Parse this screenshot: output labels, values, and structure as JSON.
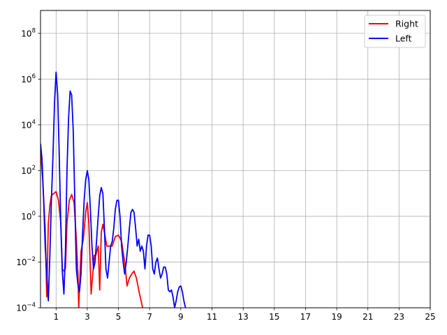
{
  "chart_data": {
    "type": "line",
    "title": "",
    "xlabel": "",
    "ylabel": "",
    "xlim": [
      0,
      25
    ],
    "ylim": [
      0.0001,
      1000000000
    ],
    "yscale": "log",
    "grid": true,
    "legend_position": "top-right",
    "x_ticks": [
      1,
      3,
      5,
      7,
      9,
      11,
      13,
      15,
      17,
      19,
      21,
      23,
      25
    ],
    "y_ticks": [
      {
        "value": 0.0001,
        "base": "10",
        "exp": "−4"
      },
      {
        "value": 0.01,
        "base": "10",
        "exp": "−2"
      },
      {
        "value": 1,
        "base": "10",
        "exp": "0"
      },
      {
        "value": 100,
        "base": "10",
        "exp": "2"
      },
      {
        "value": 10000,
        "base": "10",
        "exp": "4"
      },
      {
        "value": 1000000,
        "base": "10",
        "exp": "6"
      },
      {
        "value": 100000000,
        "base": "10",
        "exp": "8"
      }
    ],
    "series": [
      {
        "name": "Right",
        "color": "#ff0000",
        "x": [
          0.0,
          0.15,
          0.3,
          0.4,
          0.5,
          0.6,
          0.7,
          0.85,
          1.0,
          1.15,
          1.3,
          1.4,
          1.5,
          1.6,
          1.7,
          1.85,
          2.0,
          2.15,
          2.3,
          2.4,
          2.45,
          2.6,
          2.75,
          2.9,
          3.0,
          3.1,
          3.25,
          3.35,
          3.45,
          3.55,
          3.7,
          3.8,
          3.9,
          4.0,
          4.1,
          4.25,
          4.4,
          4.6,
          4.8,
          5.0,
          5.2,
          5.4,
          5.55,
          5.7,
          5.85,
          6.0,
          6.15,
          6.3,
          6.45,
          6.55
        ],
        "y": [
          1000,
          30,
          0.3,
          0.0003,
          0.5,
          3,
          8,
          10,
          12,
          5,
          0.5,
          0.005,
          0.004,
          0.005,
          0.5,
          5,
          9,
          4,
          0.1,
          0.003,
          0.0001,
          0.03,
          0.1,
          1.5,
          4,
          0.5,
          0.0004,
          0.003,
          0.02,
          0.02,
          0.05,
          0.0006,
          0.2,
          0.45,
          0.2,
          0.05,
          0.05,
          0.05,
          0.13,
          0.15,
          0.08,
          0.01,
          0.0009,
          0.002,
          0.003,
          0.004,
          0.002,
          0.0006,
          0.0002,
          0.0001
        ]
      },
      {
        "name": "Left",
        "color": "#0000ff",
        "x": [
          0.0,
          0.1,
          0.2,
          0.3,
          0.4,
          0.5,
          0.6,
          0.7,
          0.8,
          0.9,
          1.0,
          1.1,
          1.2,
          1.3,
          1.4,
          1.5,
          1.6,
          1.7,
          1.8,
          1.9,
          2.0,
          2.1,
          2.2,
          2.3,
          2.4,
          2.5,
          2.6,
          2.7,
          2.8,
          2.9,
          3.0,
          3.1,
          3.2,
          3.3,
          3.4,
          3.5,
          3.6,
          3.7,
          3.8,
          3.9,
          4.0,
          4.1,
          4.2,
          4.3,
          4.4,
          4.5,
          4.6,
          4.7,
          4.8,
          4.9,
          5.0,
          5.1,
          5.2,
          5.3,
          5.4,
          5.5,
          5.6,
          5.7,
          5.8,
          5.9,
          6.0,
          6.1,
          6.2,
          6.3,
          6.4,
          6.5,
          6.6,
          6.7,
          6.8,
          6.9,
          7.0,
          7.1,
          7.2,
          7.3,
          7.4,
          7.5,
          7.6,
          7.7,
          7.8,
          7.9,
          8.0,
          8.1,
          8.2,
          8.3,
          8.4,
          8.5,
          8.6,
          8.7,
          8.8,
          8.9,
          9.0,
          9.1,
          9.2,
          9.3
        ],
        "y": [
          1500,
          300,
          5,
          0.05,
          0.003,
          0.0002,
          0.02,
          5,
          500,
          100000,
          2000000,
          200000,
          500,
          0.5,
          0.004,
          0.0004,
          0.03,
          100,
          20000,
          300000,
          200000,
          5000,
          5,
          0.005,
          0.001,
          0.0005,
          0.003,
          0.2,
          5,
          40,
          100,
          40,
          2,
          0.05,
          0.005,
          0.01,
          0.1,
          1,
          8,
          18,
          10,
          0.3,
          0.005,
          0.002,
          0.01,
          0.05,
          0.08,
          0.3,
          2,
          5,
          5,
          1,
          0.05,
          0.01,
          0.003,
          0.01,
          0.05,
          0.3,
          1.5,
          2,
          1.5,
          0.3,
          0.05,
          0.1,
          0.03,
          0.05,
          0.03,
          0.005,
          0.05,
          0.15,
          0.15,
          0.05,
          0.005,
          0.003,
          0.01,
          0.015,
          0.005,
          0.002,
          0.003,
          0.006,
          0.006,
          0.003,
          0.0006,
          0.0005,
          0.0006,
          0.0003,
          0.0001,
          0.0002,
          0.0005,
          0.0008,
          0.0009,
          0.0005,
          0.0002,
          0.0001
        ]
      }
    ]
  }
}
